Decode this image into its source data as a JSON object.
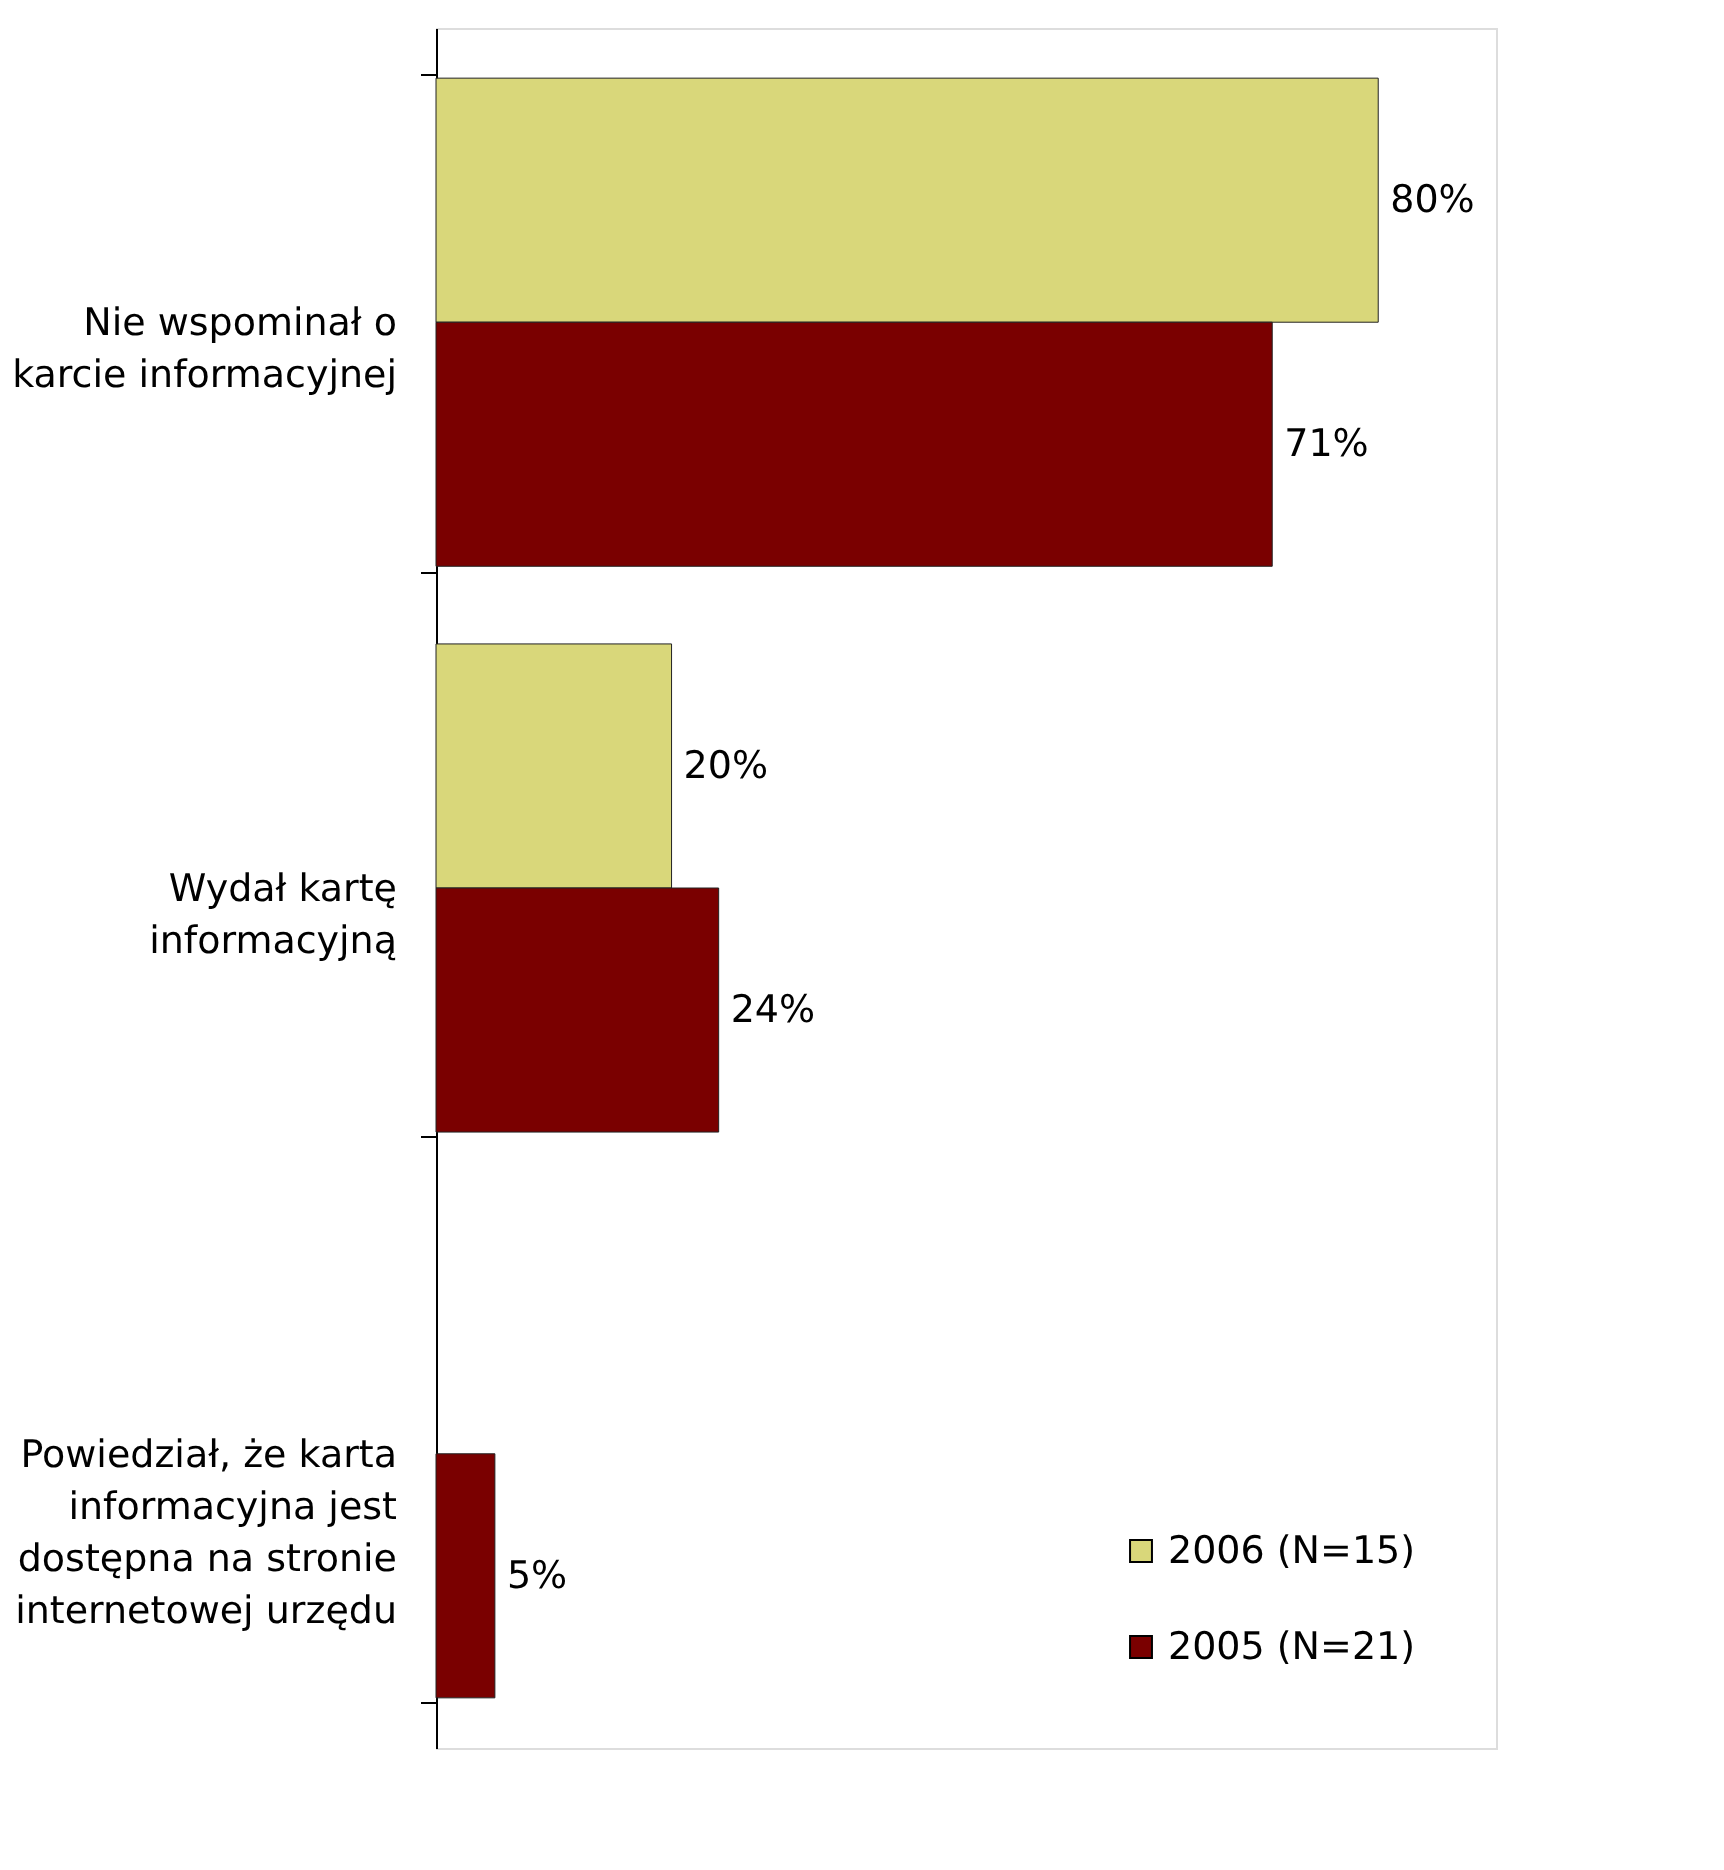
{
  "chart_data": {
    "type": "bar",
    "orientation": "horizontal",
    "categories": [
      "Nie wspominał o karcie informacyjnej",
      "Wydał kartę informacyjną",
      "Powiedział, że karta informacyjna jest dostępna na stronie internetowej urzędu"
    ],
    "series": [
      {
        "name": "2006 (N=15)",
        "color": "#d9d77a",
        "values": [
          80,
          20,
          null
        ],
        "value_labels": [
          "80%",
          "20%",
          null
        ]
      },
      {
        "name": "2005 (N=21)",
        "color": "#7a0000",
        "values": [
          71,
          24,
          5
        ],
        "value_labels": [
          "71%",
          "24%",
          "5%"
        ]
      }
    ],
    "xlim": [
      0,
      90
    ],
    "tick_labels": "y",
    "legend": "bottom right"
  }
}
